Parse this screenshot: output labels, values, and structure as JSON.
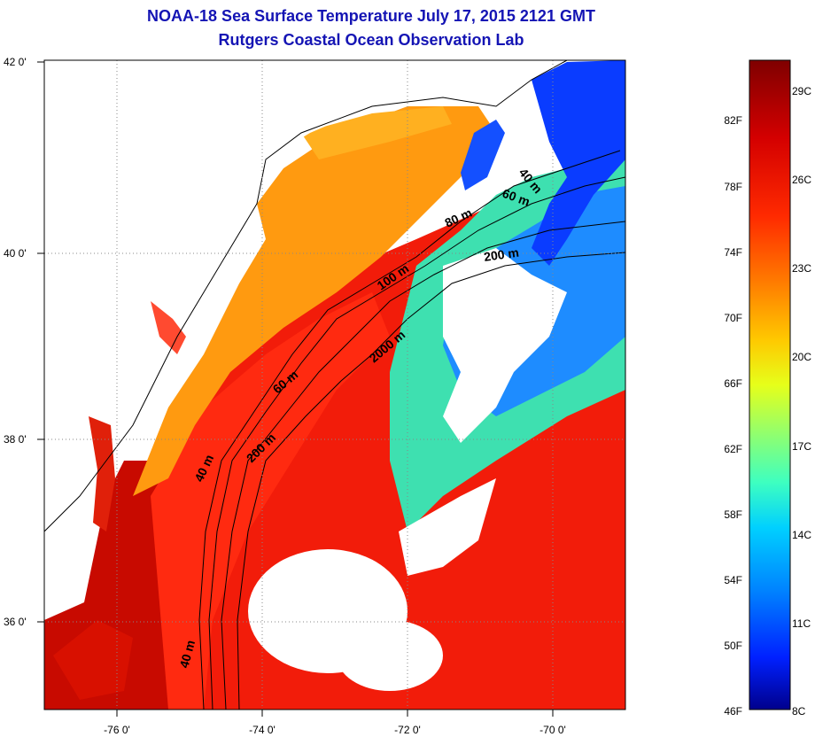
{
  "title": "NOAA-18 Sea Surface Temperature July 17, 2015 2121 GMT",
  "subtitle": "Rutgers Coastal Ocean Observation Lab",
  "map": {
    "lon_ticks": [
      "-76 0'",
      "-74 0'",
      "-72 0'",
      "-70 0'"
    ],
    "lat_ticks": [
      "42 0'",
      "40 0'",
      "38 0'",
      "36 0'"
    ],
    "contour_labels": [
      "40 m",
      "60 m",
      "80 m",
      "200 m",
      "100 m",
      "2000 m",
      "60 m",
      "200 m",
      "40 m",
      "40 m"
    ]
  },
  "colorbar": {
    "fahrenheit_labels": [
      "82F",
      "78F",
      "74F",
      "70F",
      "66F",
      "62F",
      "58F",
      "54F",
      "50F",
      "46F"
    ],
    "celsius_labels": [
      "29C",
      "26C",
      "23C",
      "20C",
      "17C",
      "14C",
      "11C",
      "8C"
    ],
    "colors": [
      "#7f0000",
      "#d40000",
      "#ff2a00",
      "#ff7a00",
      "#ffc800",
      "#e6ff1a",
      "#8cff73",
      "#3effc0",
      "#00d0ff",
      "#0080ff",
      "#0020ff",
      "#00008c"
    ]
  }
}
